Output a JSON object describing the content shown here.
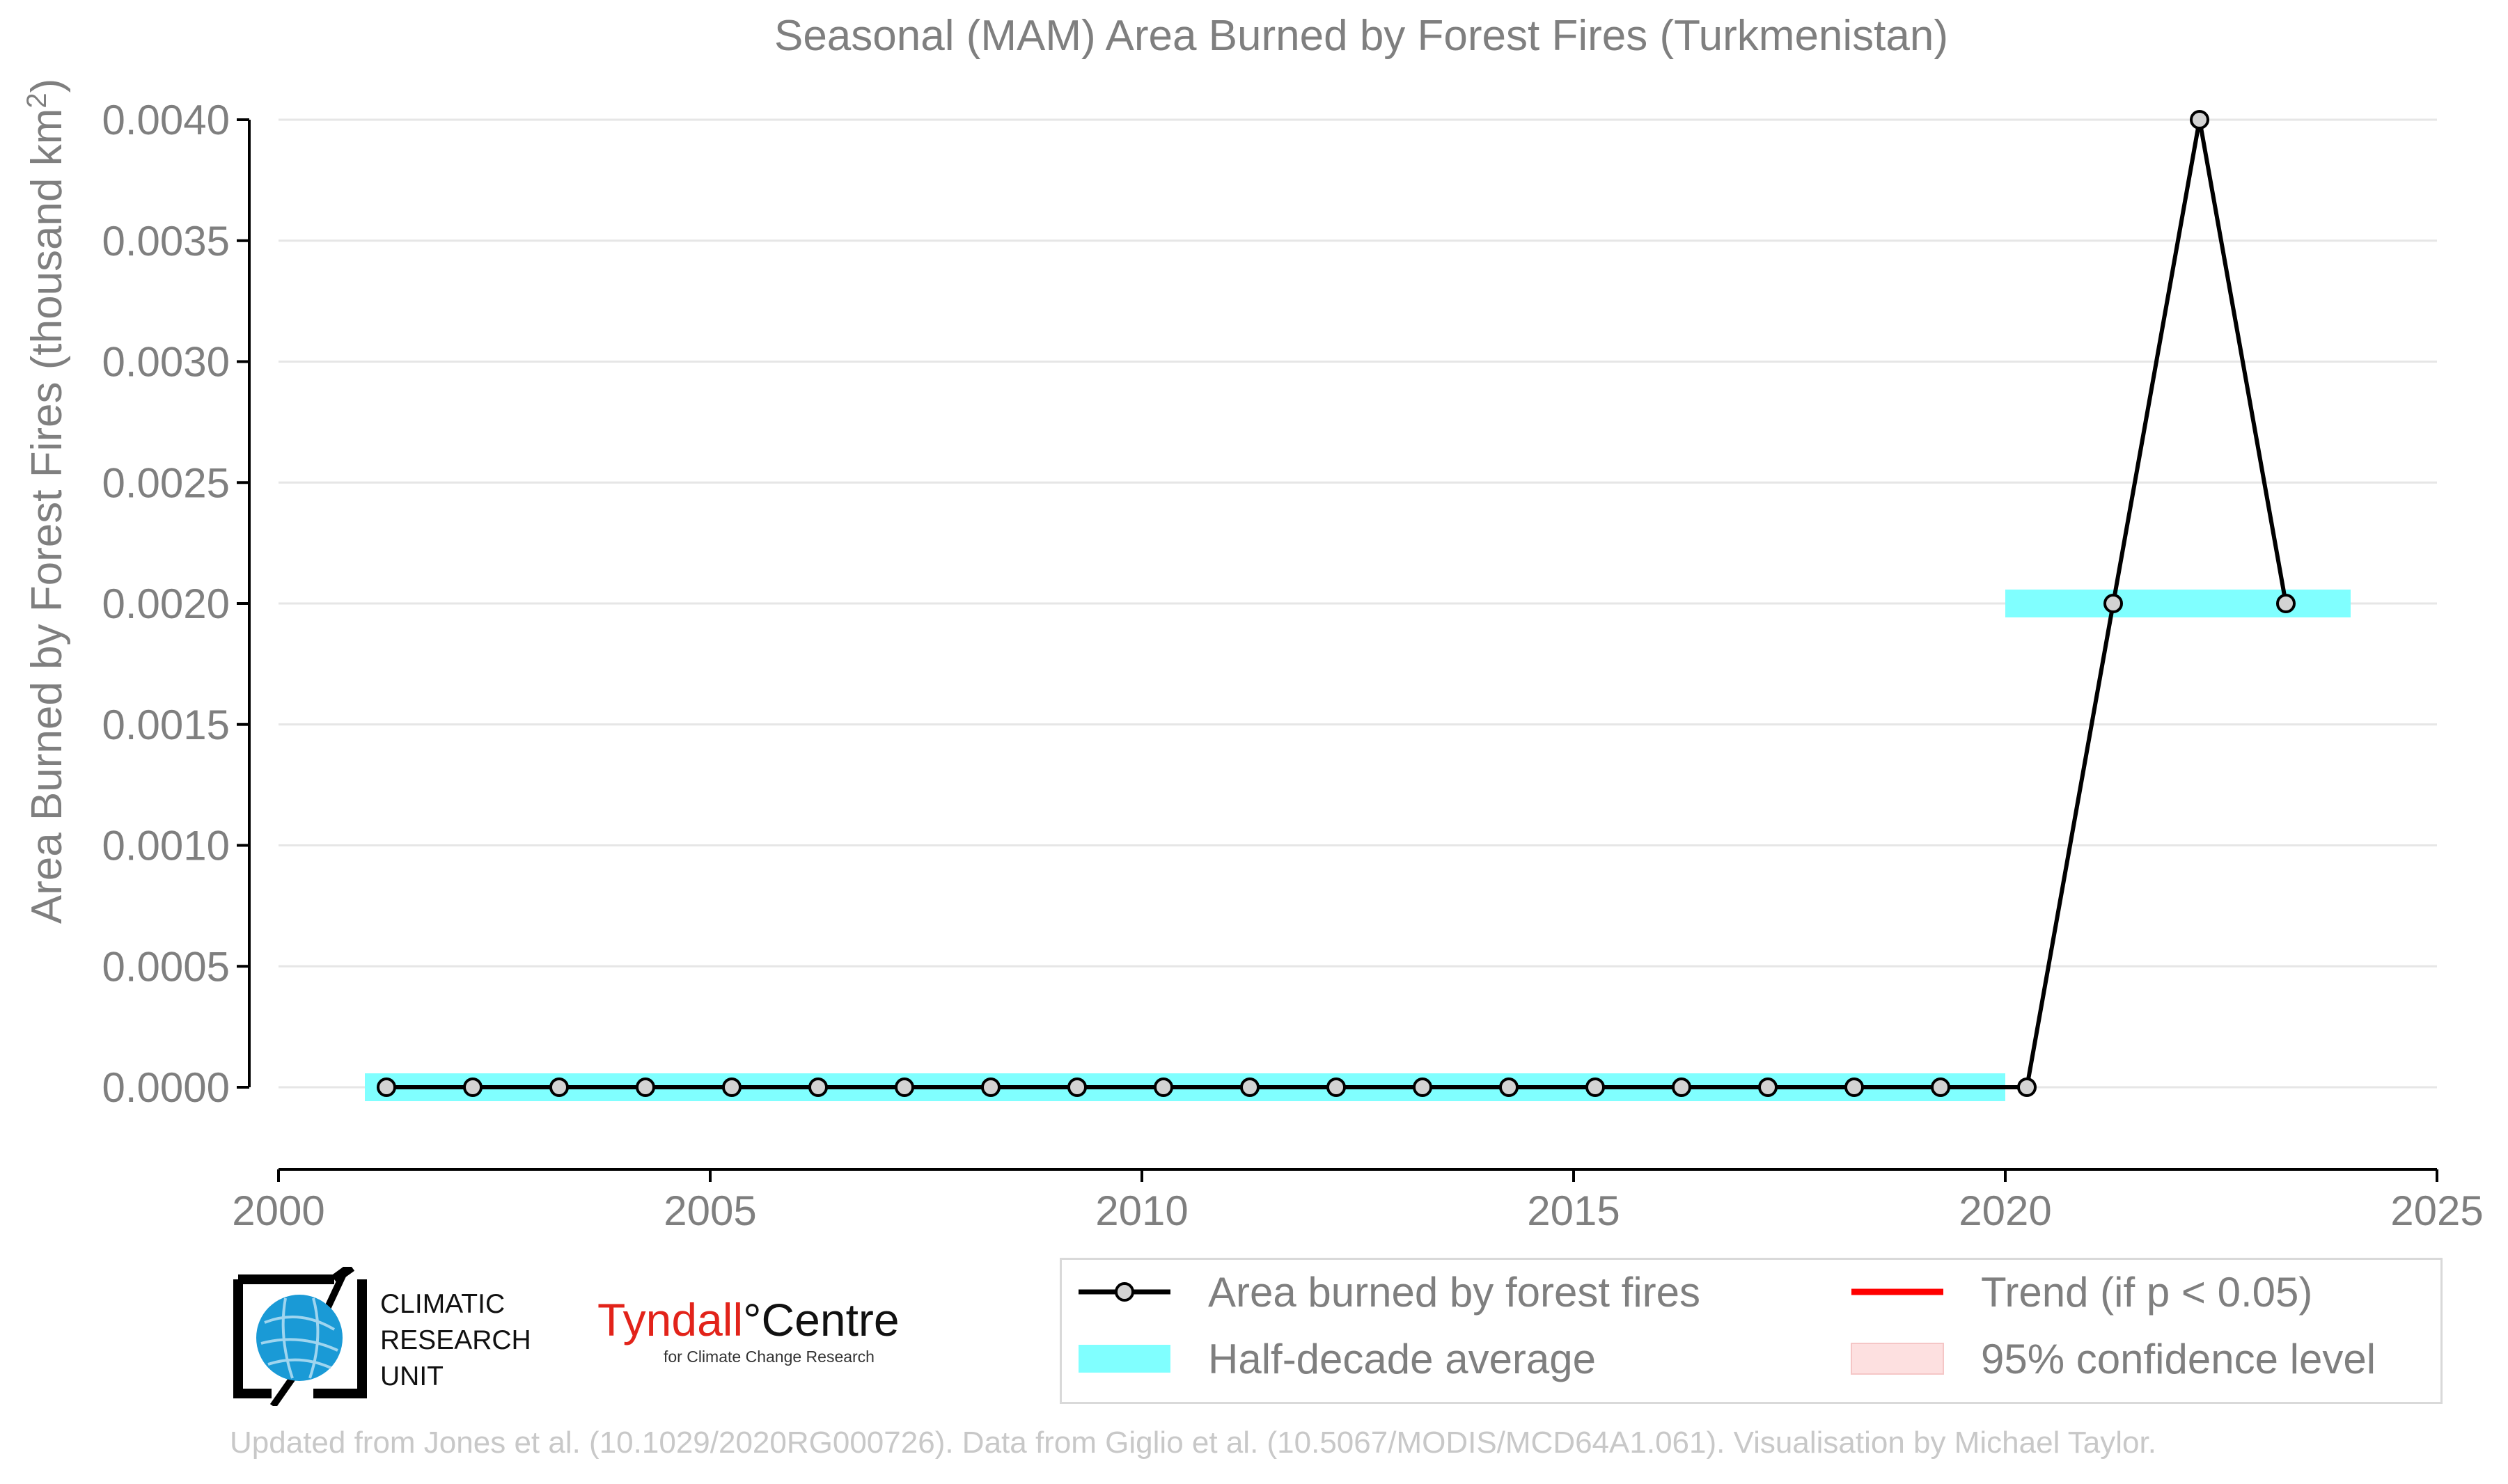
{
  "chart_data": {
    "type": "line",
    "title": "Seasonal (MAM) Area Burned by Forest Fires (Turkmenistan)",
    "xlabel": "",
    "ylabel": "Area Burned by Forest Fires (thousand km",
    "ylabel_sup": "2",
    "ylabel_end": ")",
    "xlim": [
      2000,
      2025
    ],
    "ylim": [
      -0.00034,
      0.004
    ],
    "x_ticks": [
      2000,
      2005,
      2010,
      2015,
      2020,
      2025
    ],
    "y_ticks": [
      0.0,
      0.0005,
      0.001,
      0.0015,
      0.002,
      0.0025,
      0.003,
      0.0035,
      0.004
    ],
    "y_tick_labels": [
      "0.0000",
      "0.0005",
      "0.0010",
      "0.0015",
      "0.0020",
      "0.0025",
      "0.0030",
      "0.0035",
      "0.0040"
    ],
    "grid": "horizontal",
    "series": [
      {
        "name": "Area burned by forest fires",
        "color": "#000000",
        "marker_fill": "#d3d3d3",
        "x": [
          2001,
          2002,
          2003,
          2004,
          2005,
          2006,
          2007,
          2008,
          2009,
          2010,
          2011,
          2012,
          2013,
          2014,
          2015,
          2016,
          2017,
          2018,
          2019,
          2020,
          2021,
          2022,
          2023
        ],
        "y": [
          0,
          0,
          0,
          0,
          0,
          0,
          0,
          0,
          0,
          0,
          0,
          0,
          0,
          0,
          0,
          0,
          0,
          0,
          0,
          0,
          0.002,
          0.004,
          0.002
        ]
      }
    ],
    "half_decade_average": {
      "name": "Half-decade average",
      "color": "#80ffff",
      "segments": [
        {
          "x_start": 2001,
          "x_end": 2020,
          "value": 0.0
        },
        {
          "x_start": 2020,
          "x_end": 2024,
          "value": 0.002
        }
      ]
    },
    "legend": {
      "placement": "bottom-right",
      "entries": [
        {
          "label": "Area burned by forest fires",
          "kind": "line-marker",
          "color": "#000000"
        },
        {
          "label": "Trend (if p < 0.05)",
          "kind": "line",
          "color": "#ff0000"
        },
        {
          "label": "Half-decade average",
          "kind": "band",
          "color": "#80ffff"
        },
        {
          "label": "95% confidence level",
          "kind": "band",
          "color": "#fde0e0"
        }
      ]
    }
  },
  "logos": {
    "cru_label": "CLIMATIC\nRESEARCH\nUNIT",
    "tyndall_main_1": "Tyndall",
    "tyndall_main_2": "°Centre",
    "tyndall_sub": "for Climate Change Research"
  },
  "caption": "Updated from Jones et al. (10.1029/2020RG000726). Data from Giglio et al. (10.5067/MODIS/MCD64A1.061). Visualisation by Michael Taylor.",
  "colors": {
    "text": "#7f7f7f",
    "grid": "#e6e6e6",
    "axis": "#000000"
  }
}
